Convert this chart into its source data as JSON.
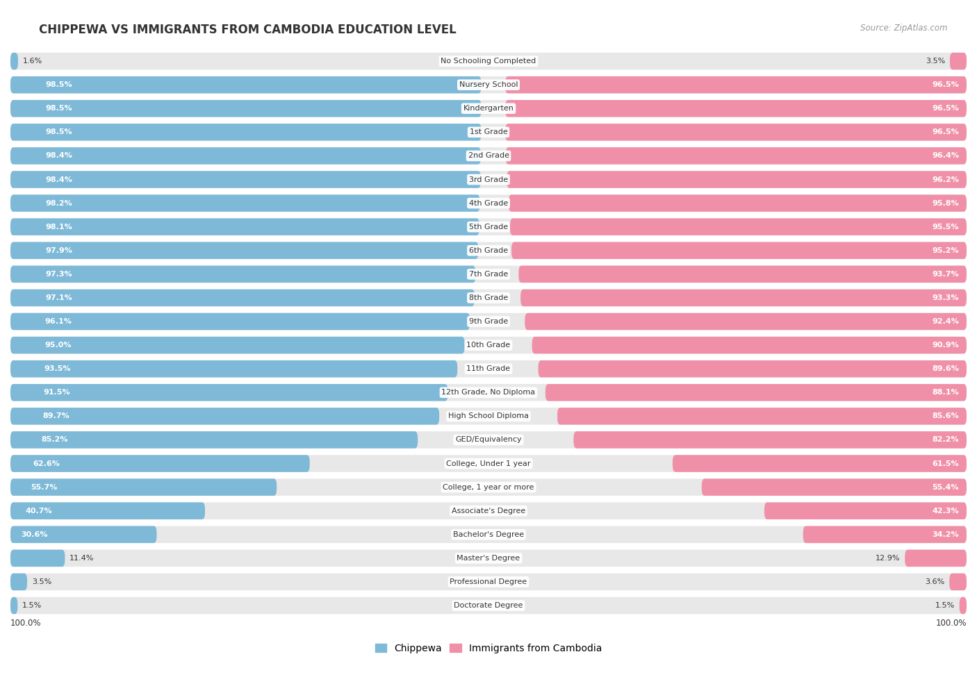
{
  "title": "CHIPPEWA VS IMMIGRANTS FROM CAMBODIA EDUCATION LEVEL",
  "source": "Source: ZipAtlas.com",
  "categories": [
    "No Schooling Completed",
    "Nursery School",
    "Kindergarten",
    "1st Grade",
    "2nd Grade",
    "3rd Grade",
    "4th Grade",
    "5th Grade",
    "6th Grade",
    "7th Grade",
    "8th Grade",
    "9th Grade",
    "10th Grade",
    "11th Grade",
    "12th Grade, No Diploma",
    "High School Diploma",
    "GED/Equivalency",
    "College, Under 1 year",
    "College, 1 year or more",
    "Associate's Degree",
    "Bachelor's Degree",
    "Master's Degree",
    "Professional Degree",
    "Doctorate Degree"
  ],
  "chippewa": [
    1.6,
    98.5,
    98.5,
    98.5,
    98.4,
    98.4,
    98.2,
    98.1,
    97.9,
    97.3,
    97.1,
    96.1,
    95.0,
    93.5,
    91.5,
    89.7,
    85.2,
    62.6,
    55.7,
    40.7,
    30.6,
    11.4,
    3.5,
    1.5
  ],
  "cambodia": [
    3.5,
    96.5,
    96.5,
    96.5,
    96.4,
    96.2,
    95.8,
    95.5,
    95.2,
    93.7,
    93.3,
    92.4,
    90.9,
    89.6,
    88.1,
    85.6,
    82.2,
    61.5,
    55.4,
    42.3,
    34.2,
    12.9,
    3.6,
    1.5
  ],
  "chippewa_color": "#7eb9d8",
  "cambodia_color": "#f090a8",
  "background_color": "#ffffff",
  "row_color": "#e8e8e8",
  "label_color_dark": "#333333",
  "label_color_light": "#ffffff",
  "legend_chippewa": "Chippewa",
  "legend_cambodia": "Immigrants from Cambodia"
}
